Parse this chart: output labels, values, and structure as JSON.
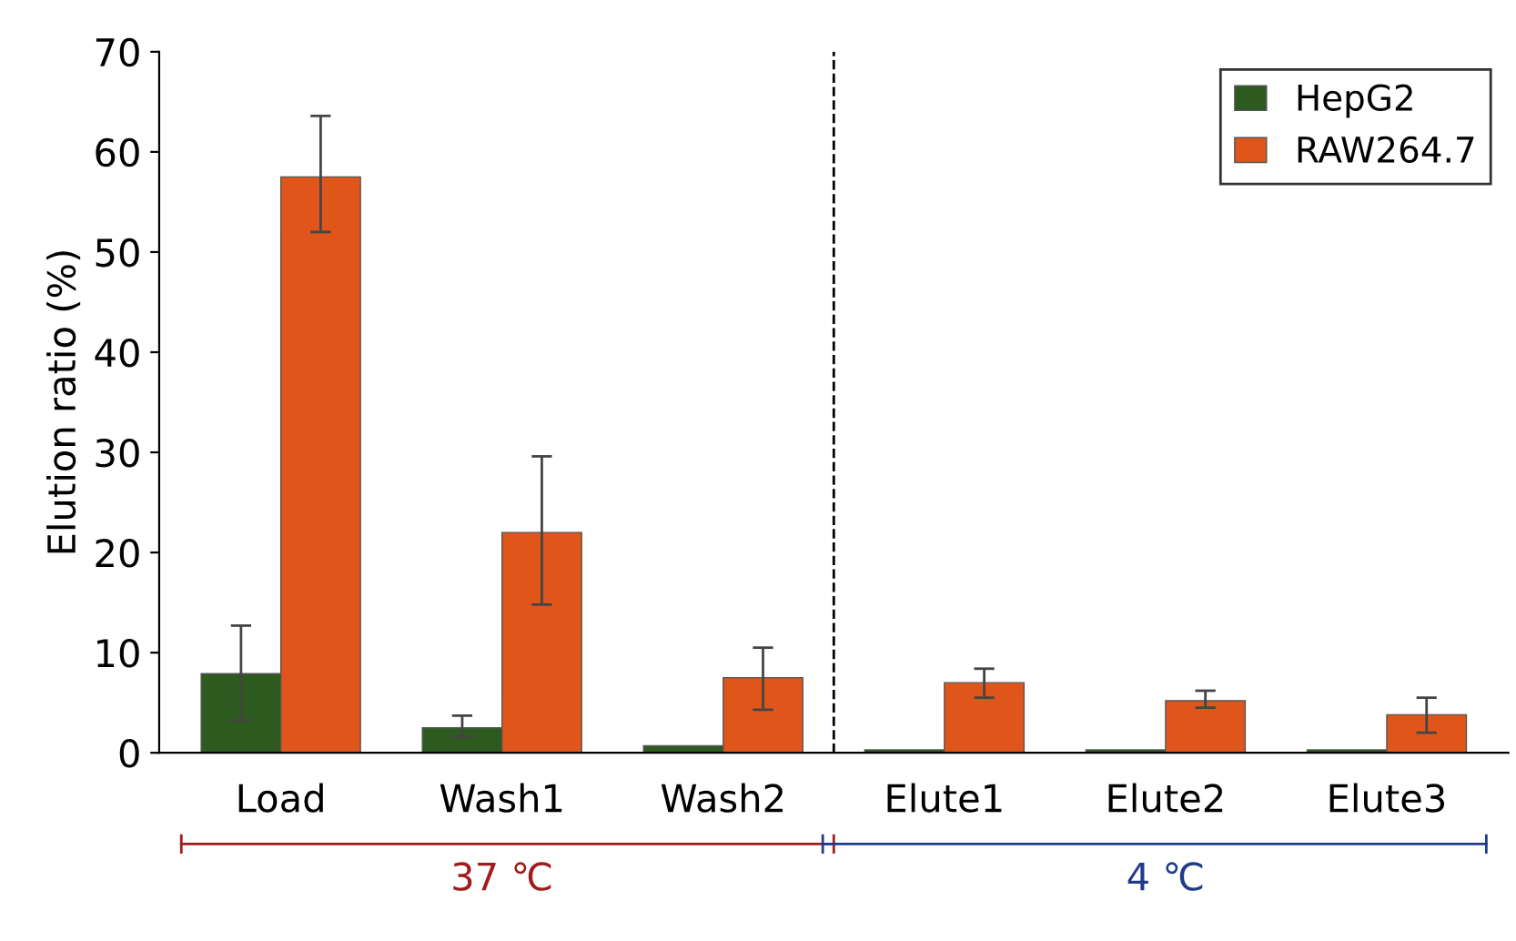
{
  "chart_data": {
    "type": "bar",
    "ylabel": "Elution ratio (%)",
    "categories": [
      "Load",
      "Wash1",
      "Wash2",
      "Elute1",
      "Elute2",
      "Elute3"
    ],
    "series": [
      {
        "name": "HepG2",
        "color": "#2d5a1e",
        "values": [
          7.9,
          2.5,
          0.7,
          0.3,
          0.3,
          0.3
        ],
        "errors": [
          [
            3.2,
            12.7
          ],
          [
            1.6,
            3.7
          ],
          null,
          null,
          null,
          null
        ]
      },
      {
        "name": "RAW264.7",
        "color": "#e0561a",
        "values": [
          57.5,
          22,
          7.5,
          7.0,
          5.2,
          3.8
        ],
        "errors": [
          [
            52,
            63.6
          ],
          [
            14.8,
            29.6
          ],
          [
            4.3,
            10.5
          ],
          [
            5.5,
            8.4
          ],
          [
            4.5,
            6.2
          ],
          [
            2,
            5.5
          ]
        ]
      }
    ],
    "ylim": [
      0,
      70
    ],
    "yticks": [
      0,
      10,
      20,
      30,
      40,
      50,
      60,
      70
    ],
    "annotations": [
      "37 ℃",
      "4 ℃"
    ],
    "legend": "top right",
    "grid": false
  }
}
